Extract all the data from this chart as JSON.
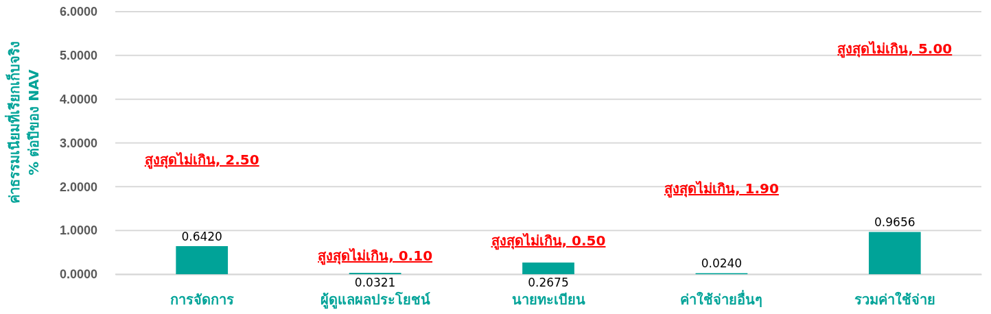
{
  "chart_data": {
    "type": "bar",
    "ylabel": "ค่าธรรมเนียมที่เรียกเก็บจริง\n% ต่อปีของ NAV",
    "categories": [
      "การจัดการ",
      "ผู้ดูแลผลประโยชน์",
      "นายทะเบียน",
      "ค่าใช้จ่ายอื่นๆ",
      "รวมค่าใช้จ่าย"
    ],
    "values": [
      0.642,
      0.0321,
      0.2675,
      0.024,
      0.9656
    ],
    "color": "#00a398",
    "ylim": [
      0,
      6
    ],
    "yticks": [
      {
        "value": 0,
        "label": "0.0000"
      },
      {
        "value": 1,
        "label": "1.0000"
      },
      {
        "value": 2,
        "label": "2.0000"
      },
      {
        "value": 3,
        "label": "3.0000"
      },
      {
        "value": 4,
        "label": "4.0000"
      },
      {
        "value": 5,
        "label": "5.0000"
      },
      {
        "value": 6,
        "label": "6.0000"
      }
    ],
    "grid": "y",
    "value_labels": [
      "0.6420",
      "0.0321",
      "0.2675",
      "0.0240",
      "0.9656"
    ],
    "annotations": [
      "สูงสุดไม่เกิน, 2.50",
      "สูงสุดไม่เกิน, 0.10",
      "สูงสุดไม่เกิน, 0.50",
      "สูงสุดไม่เกิน, 1.90",
      "สูงสุดไม่เกิน, 5.00"
    ]
  }
}
